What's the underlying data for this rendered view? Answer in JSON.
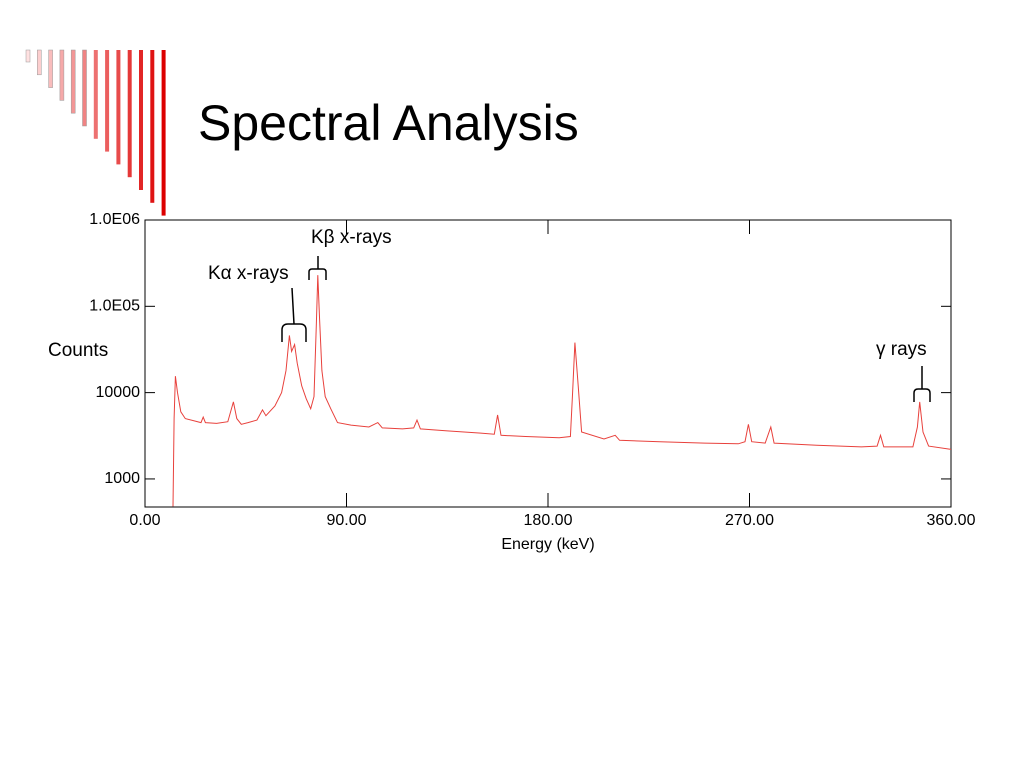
{
  "slide": {
    "title": "Spectral Analysis"
  },
  "chart_data": {
    "type": "line",
    "xlabel": "Energy (keV)",
    "ylabel": "Counts",
    "log_y": true,
    "grid": false,
    "xlim": [
      0,
      360
    ],
    "xticks": [
      {
        "value": 0,
        "label": "0.00"
      },
      {
        "value": 90,
        "label": "90.00"
      },
      {
        "value": 180,
        "label": "180.00"
      },
      {
        "value": 270,
        "label": "270.00"
      },
      {
        "value": 360,
        "label": "360.00"
      }
    ],
    "ylim": [
      473,
      1000000
    ],
    "yticks": [
      {
        "value": 1000,
        "label": "1000"
      },
      {
        "value": 10000,
        "label": "10000"
      },
      {
        "value": 100000,
        "label": "1.0E05"
      },
      {
        "value": 1000000,
        "label": "1.0E06"
      }
    ],
    "annotations": [
      "Kα x-rays",
      "Kβ x-rays",
      "γ rays"
    ],
    "series": [
      {
        "color": "#e8413c",
        "x": [
          12.5,
          13.0,
          13.6,
          14.5,
          16,
          18,
          22,
          25,
          26,
          27,
          32,
          37,
          39.5,
          41,
          43,
          46,
          50,
          52.5,
          54,
          58,
          61,
          63,
          64.5,
          65.5,
          66.8,
          68,
          70,
          72,
          74,
          75.5,
          76.5,
          77.2,
          78,
          79,
          80.5,
          83,
          86,
          92,
          100,
          104,
          106,
          115,
          120,
          121.5,
          123,
          135,
          150,
          156,
          157.5,
          159,
          170,
          185,
          190,
          191,
          192,
          193.5,
          195,
          205,
          210,
          212,
          230,
          250,
          265,
          268,
          269.5,
          271,
          277,
          279.5,
          281,
          300,
          320,
          327,
          328.5,
          330,
          343,
          345,
          346,
          347.5,
          350,
          360
        ],
        "values": [
          480,
          5000,
          15500,
          10000,
          6000,
          5000,
          4700,
          4500,
          5200,
          4500,
          4400,
          4600,
          7800,
          5000,
          4300,
          4500,
          4800,
          6300,
          5400,
          7000,
          10000,
          18000,
          46000,
          30000,
          36000,
          22000,
          12000,
          8500,
          6500,
          9000,
          60000,
          230000,
          70000,
          18000,
          9000,
          6500,
          4500,
          4200,
          4000,
          4500,
          3900,
          3800,
          3900,
          4800,
          3800,
          3600,
          3400,
          3300,
          5500,
          3200,
          3100,
          3000,
          3100,
          10000,
          38000,
          12000,
          3500,
          2900,
          3200,
          2800,
          2700,
          2600,
          2550,
          2700,
          4300,
          2700,
          2600,
          4000,
          2600,
          2450,
          2350,
          2400,
          3200,
          2350,
          2350,
          4000,
          7800,
          3500,
          2400,
          2200
        ]
      }
    ]
  }
}
